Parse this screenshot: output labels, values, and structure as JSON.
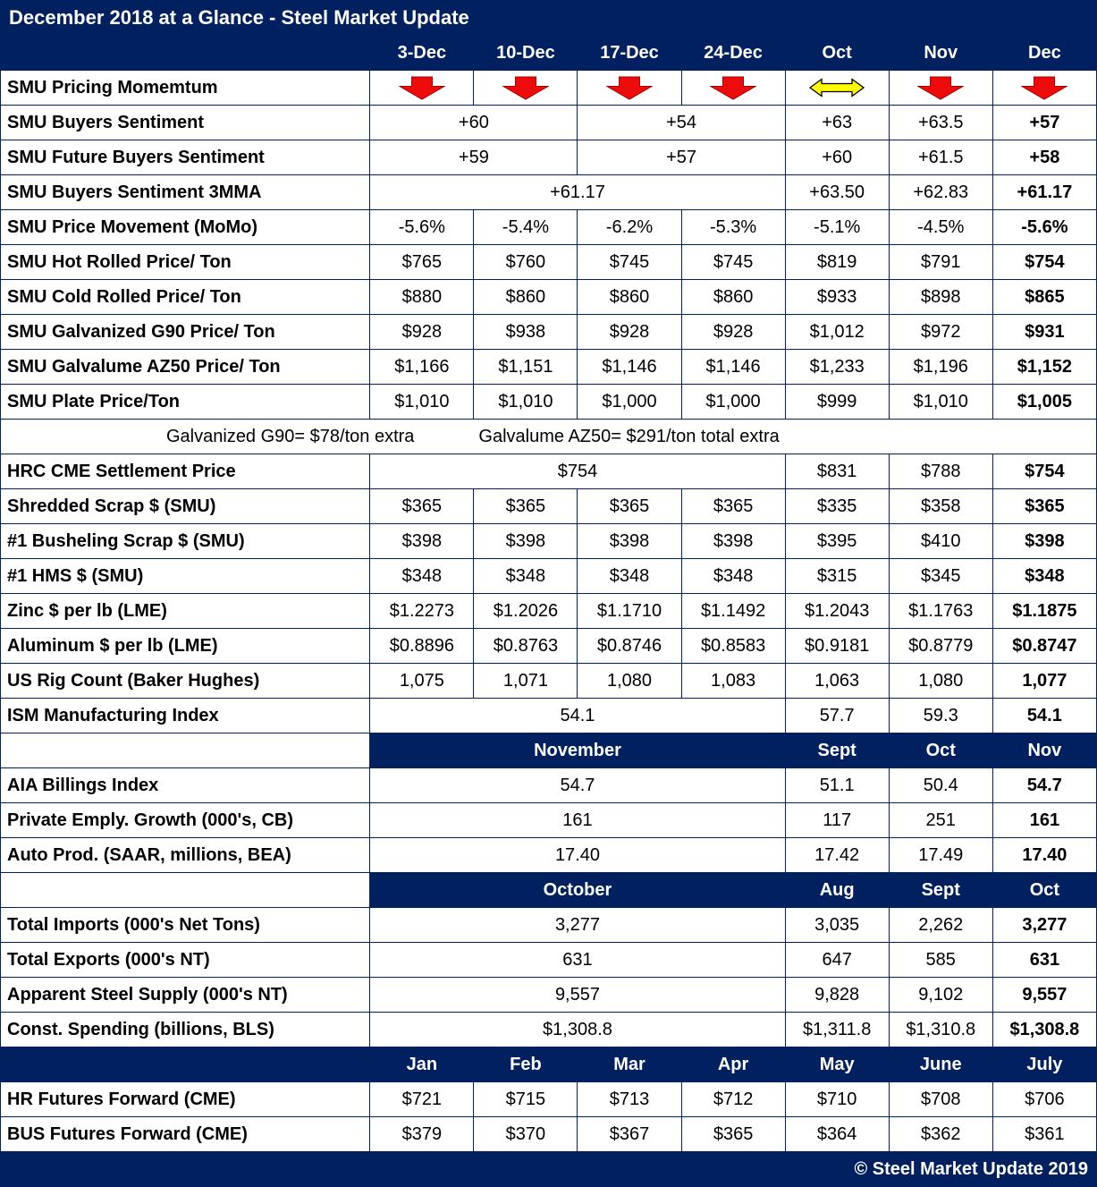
{
  "title": "December 2018 at a Glance - Steel Market Update",
  "footer": "© Steel Market Update 2019",
  "colors": {
    "navy": "#002060",
    "arrow_red": "#EE0B0B",
    "arrow_red_stroke": "#A00000",
    "arrow_yellow": "#FFFF00"
  },
  "chart_data": {
    "type": "table",
    "columns": [
      "3-Dec",
      "10-Dec",
      "17-Dec",
      "24-Dec",
      "Oct",
      "Nov",
      "Dec"
    ],
    "rows": [
      {
        "type": "data",
        "label": "SMU Pricing Momemtum",
        "cells": [
          {
            "icon": "down"
          },
          {
            "icon": "down"
          },
          {
            "icon": "down"
          },
          {
            "icon": "down"
          },
          {
            "icon": "leftright"
          },
          {
            "icon": "down"
          },
          {
            "icon": "down"
          }
        ]
      },
      {
        "type": "data",
        "label": "SMU Buyers Sentiment",
        "cells": [
          {
            "v": "+60",
            "span": 2
          },
          {
            "v": "+54",
            "span": 2
          },
          {
            "v": "+63"
          },
          {
            "v": "+63.5"
          },
          {
            "v": "+57",
            "bold": true
          }
        ]
      },
      {
        "type": "data",
        "label": "SMU Future Buyers Sentiment",
        "cells": [
          {
            "v": "+59",
            "span": 2
          },
          {
            "v": "+57",
            "span": 2
          },
          {
            "v": "+60"
          },
          {
            "v": "+61.5"
          },
          {
            "v": "+58",
            "bold": true
          }
        ]
      },
      {
        "type": "data",
        "label": "SMU Buyers Sentiment 3MMA",
        "cells": [
          {
            "v": "+61.17",
            "span": 4
          },
          {
            "v": "+63.50"
          },
          {
            "v": "+62.83"
          },
          {
            "v": "+61.17",
            "bold": true
          }
        ]
      },
      {
        "type": "data",
        "label": "SMU Price Movement (MoMo)",
        "cells": [
          {
            "v": "-5.6%"
          },
          {
            "v": "-5.4%"
          },
          {
            "v": "-6.2%"
          },
          {
            "v": "-5.3%"
          },
          {
            "v": "-5.1%"
          },
          {
            "v": "-4.5%"
          },
          {
            "v": "-5.6%",
            "bold": true
          }
        ]
      },
      {
        "type": "data",
        "label": "SMU Hot Rolled Price/ Ton",
        "cells": [
          {
            "v": "$765"
          },
          {
            "v": "$760"
          },
          {
            "v": "$745"
          },
          {
            "v": "$745"
          },
          {
            "v": "$819"
          },
          {
            "v": "$791"
          },
          {
            "v": "$754",
            "bold": true
          }
        ]
      },
      {
        "type": "data",
        "label": "SMU Cold Rolled Price/ Ton",
        "cells": [
          {
            "v": "$880"
          },
          {
            "v": "$860"
          },
          {
            "v": "$860"
          },
          {
            "v": "$860"
          },
          {
            "v": "$933"
          },
          {
            "v": "$898"
          },
          {
            "v": "$865",
            "bold": true
          }
        ]
      },
      {
        "type": "data",
        "label": "SMU Galvanized G90 Price/ Ton",
        "cells": [
          {
            "v": "$928"
          },
          {
            "v": "$938"
          },
          {
            "v": "$928"
          },
          {
            "v": "$928"
          },
          {
            "v": "$1,012"
          },
          {
            "v": "$972"
          },
          {
            "v": "$931",
            "bold": true
          }
        ]
      },
      {
        "type": "data",
        "label": "SMU Galvalume AZ50 Price/ Ton",
        "cells": [
          {
            "v": "$1,166"
          },
          {
            "v": "$1,151"
          },
          {
            "v": "$1,146"
          },
          {
            "v": "$1,146"
          },
          {
            "v": "$1,233"
          },
          {
            "v": "$1,196"
          },
          {
            "v": "$1,152",
            "bold": true
          }
        ]
      },
      {
        "type": "data",
        "label": "SMU Plate Price/Ton",
        "cells": [
          {
            "v": "$1,010"
          },
          {
            "v": "$1,010"
          },
          {
            "v": "$1,000"
          },
          {
            "v": "$1,000"
          },
          {
            "v": "$999"
          },
          {
            "v": "$1,010"
          },
          {
            "v": "$1,005",
            "bold": true
          }
        ]
      },
      {
        "type": "note",
        "parts": [
          "Galvanized G90= $78/ton extra",
          "Galvalume AZ50= $291/ton total extra"
        ]
      },
      {
        "type": "data",
        "label": "HRC CME Settlement Price",
        "cells": [
          {
            "v": "$754",
            "span": 4
          },
          {
            "v": "$831"
          },
          {
            "v": "$788"
          },
          {
            "v": "$754",
            "bold": true
          }
        ]
      },
      {
        "type": "data",
        "label": "Shredded Scrap $ (SMU)",
        "cells": [
          {
            "v": "$365"
          },
          {
            "v": "$365"
          },
          {
            "v": "$365"
          },
          {
            "v": "$365"
          },
          {
            "v": "$335"
          },
          {
            "v": "$358"
          },
          {
            "v": "$365",
            "bold": true
          }
        ]
      },
      {
        "type": "data",
        "label": "#1 Busheling Scrap $ (SMU)",
        "cells": [
          {
            "v": "$398"
          },
          {
            "v": "$398"
          },
          {
            "v": "$398"
          },
          {
            "v": "$398"
          },
          {
            "v": "$395"
          },
          {
            "v": "$410"
          },
          {
            "v": "$398",
            "bold": true
          }
        ]
      },
      {
        "type": "data",
        "label": "#1 HMS $ (SMU)",
        "cells": [
          {
            "v": "$348"
          },
          {
            "v": "$348"
          },
          {
            "v": "$348"
          },
          {
            "v": "$348"
          },
          {
            "v": "$315"
          },
          {
            "v": "$345"
          },
          {
            "v": "$348",
            "bold": true
          }
        ]
      },
      {
        "type": "data",
        "label": "Zinc $ per lb (LME)",
        "cells": [
          {
            "v": "$1.2273"
          },
          {
            "v": "$1.2026"
          },
          {
            "v": "$1.1710"
          },
          {
            "v": "$1.1492"
          },
          {
            "v": "$1.2043"
          },
          {
            "v": "$1.1763"
          },
          {
            "v": "$1.1875",
            "bold": true
          }
        ]
      },
      {
        "type": "data",
        "label": "Aluminum $ per lb (LME)",
        "cells": [
          {
            "v": "$0.8896"
          },
          {
            "v": "$0.8763"
          },
          {
            "v": "$0.8746"
          },
          {
            "v": "$0.8583"
          },
          {
            "v": "$0.9181"
          },
          {
            "v": "$0.8779"
          },
          {
            "v": "$0.8747",
            "bold": true
          }
        ]
      },
      {
        "type": "data",
        "label": "US Rig Count (Baker Hughes)",
        "cells": [
          {
            "v": "1,075"
          },
          {
            "v": "1,071"
          },
          {
            "v": "1,080"
          },
          {
            "v": "1,083"
          },
          {
            "v": "1,063"
          },
          {
            "v": "1,080"
          },
          {
            "v": "1,077",
            "bold": true
          }
        ]
      },
      {
        "type": "data",
        "label": "ISM Manufacturing Index",
        "cells": [
          {
            "v": "54.1",
            "span": 4
          },
          {
            "v": "57.7"
          },
          {
            "v": "59.3"
          },
          {
            "v": "54.1",
            "bold": true
          }
        ]
      },
      {
        "type": "subheader",
        "label_navy": false,
        "cells": [
          {
            "v": "November",
            "span": 4
          },
          {
            "v": "Sept"
          },
          {
            "v": "Oct"
          },
          {
            "v": "Nov"
          }
        ]
      },
      {
        "type": "data",
        "label": "AIA Billings Index",
        "cells": [
          {
            "v": "54.7",
            "span": 4
          },
          {
            "v": "51.1"
          },
          {
            "v": "50.4"
          },
          {
            "v": "54.7",
            "bold": true
          }
        ]
      },
      {
        "type": "data",
        "label": "Private Emply. Growth (000's, CB)",
        "cells": [
          {
            "v": "161",
            "span": 4
          },
          {
            "v": "117"
          },
          {
            "v": "251"
          },
          {
            "v": "161",
            "bold": true
          }
        ]
      },
      {
        "type": "data",
        "label": "Auto Prod. (SAAR, millions, BEA)",
        "cells": [
          {
            "v": "17.40",
            "span": 4
          },
          {
            "v": "17.42"
          },
          {
            "v": "17.49"
          },
          {
            "v": "17.40",
            "bold": true
          }
        ]
      },
      {
        "type": "subheader",
        "label_navy": false,
        "cells": [
          {
            "v": "October",
            "span": 4
          },
          {
            "v": "Aug"
          },
          {
            "v": "Sept"
          },
          {
            "v": "Oct"
          }
        ]
      },
      {
        "type": "data",
        "label": "Total Imports (000's Net Tons)",
        "cells": [
          {
            "v": "3,277",
            "span": 4
          },
          {
            "v": "3,035"
          },
          {
            "v": "2,262"
          },
          {
            "v": "3,277",
            "bold": true
          }
        ]
      },
      {
        "type": "data",
        "label": "Total Exports (000's NT)",
        "cells": [
          {
            "v": "631",
            "span": 4
          },
          {
            "v": "647"
          },
          {
            "v": "585"
          },
          {
            "v": "631",
            "bold": true
          }
        ]
      },
      {
        "type": "data",
        "label": "Apparent Steel Supply (000's NT)",
        "cells": [
          {
            "v": "9,557",
            "span": 4
          },
          {
            "v": "9,828"
          },
          {
            "v": "9,102"
          },
          {
            "v": "9,557",
            "bold": true
          }
        ]
      },
      {
        "type": "data",
        "label": "Const. Spending (billions, BLS)",
        "cells": [
          {
            "v": "$1,308.8",
            "span": 4
          },
          {
            "v": "$1,311.8"
          },
          {
            "v": "$1,310.8"
          },
          {
            "v": "$1,308.8",
            "bold": true
          }
        ]
      },
      {
        "type": "subheader",
        "label_navy": true,
        "cells": [
          {
            "v": "Jan"
          },
          {
            "v": "Feb"
          },
          {
            "v": "Mar"
          },
          {
            "v": "Apr"
          },
          {
            "v": "May"
          },
          {
            "v": "June"
          },
          {
            "v": "July"
          }
        ]
      },
      {
        "type": "data",
        "label": "HR Futures Forward (CME)",
        "cells": [
          {
            "v": "$721"
          },
          {
            "v": "$715"
          },
          {
            "v": "$713"
          },
          {
            "v": "$712"
          },
          {
            "v": "$710"
          },
          {
            "v": "$708"
          },
          {
            "v": "$706"
          }
        ]
      },
      {
        "type": "data",
        "label": "BUS Futures Forward (CME)",
        "cells": [
          {
            "v": "$379"
          },
          {
            "v": "$370"
          },
          {
            "v": "$367"
          },
          {
            "v": "$365"
          },
          {
            "v": "$364"
          },
          {
            "v": "$362"
          },
          {
            "v": "$361"
          }
        ]
      }
    ]
  }
}
